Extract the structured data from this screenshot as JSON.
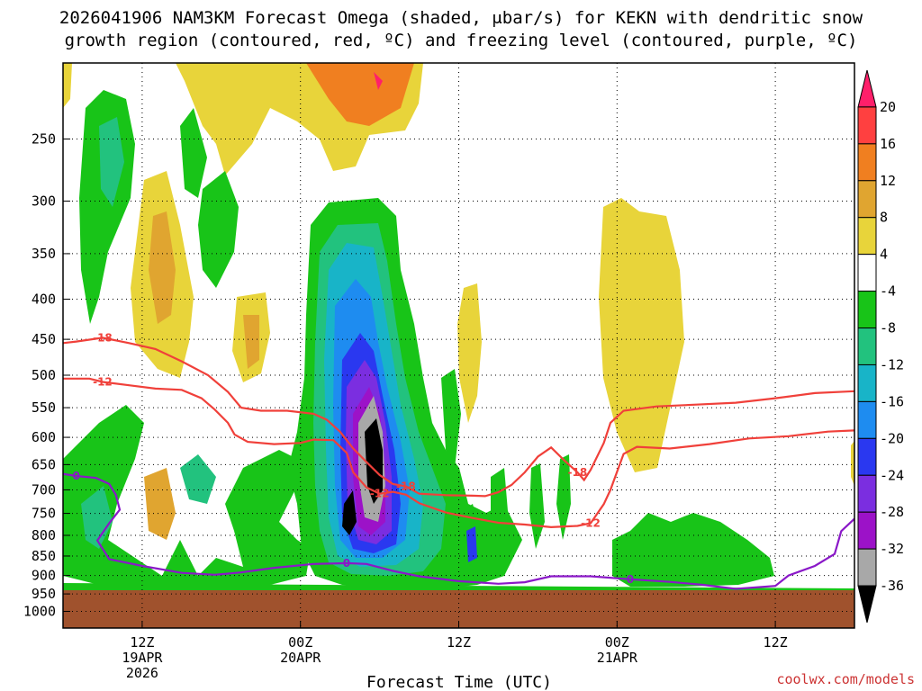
{
  "chart_data": {
    "type": "heatmap",
    "title": {
      "line1": "2026041906 NAM3KM Forecast Omega (shaded, μbar/s) for KEKN with dendritic snow",
      "line2": "growth region (contoured, red, ºC) and freezing level (contoured, purple, ºC)"
    },
    "xlabel": "Forecast Time (UTC)",
    "ylabel": "",
    "x_hours_range": [
      6,
      66
    ],
    "x_ticks": [
      {
        "hour": 12,
        "lines": [
          "12Z",
          "19APR",
          "2026"
        ]
      },
      {
        "hour": 24,
        "lines": [
          "00Z",
          "20APR"
        ]
      },
      {
        "hour": 36,
        "lines": [
          "12Z"
        ]
      },
      {
        "hour": 48,
        "lines": [
          "00Z",
          "21APR"
        ]
      },
      {
        "hour": 60,
        "lines": [
          "12Z"
        ]
      }
    ],
    "y_axis": "pressure (hPa), log scale",
    "ylim": [
      1050,
      200
    ],
    "y_ticks": [
      "250",
      "300",
      "350",
      "400",
      "450",
      "500",
      "550",
      "600",
      "650",
      "700",
      "750",
      "800",
      "850",
      "900",
      "950",
      "1000"
    ],
    "colorbar": {
      "levels": [
        "20",
        "16",
        "12",
        "8",
        "4",
        "-4",
        "-8",
        "-12",
        "-16",
        "-20",
        "-24",
        "-28",
        "-32",
        "-36"
      ],
      "colors": [
        "#ff1f6a",
        "#ff4040",
        "#f07f20",
        "#e0a530",
        "#e8d43a",
        "#ffffff",
        "#18c418",
        "#22c27e",
        "#18b4c8",
        "#1e8cf0",
        "#2a38f0",
        "#7b2ee0",
        "#9c12c8",
        "#a8a8a8",
        "#000000"
      ]
    },
    "series": [
      {
        "name": "dendritic growth -12ºC",
        "color": "#f0403a",
        "label": "-12",
        "points": [
          [
            6,
            505
          ],
          [
            8,
            505
          ],
          [
            9,
            510
          ],
          [
            11,
            515
          ],
          [
            13,
            520
          ],
          [
            15,
            522
          ],
          [
            16.5,
            535
          ],
          [
            17.5,
            553
          ],
          [
            18.5,
            575
          ],
          [
            19,
            595
          ],
          [
            20,
            608
          ],
          [
            22,
            612
          ],
          [
            24,
            610
          ],
          [
            25,
            604
          ],
          [
            26.5,
            605
          ],
          [
            27.5,
            628
          ],
          [
            28,
            665
          ],
          [
            29,
            695
          ],
          [
            30,
            708
          ],
          [
            31,
            704
          ],
          [
            32,
            710
          ],
          [
            33,
            728
          ],
          [
            35,
            748
          ],
          [
            37,
            760
          ],
          [
            39,
            771
          ],
          [
            41,
            775
          ],
          [
            43,
            781
          ],
          [
            45,
            778
          ],
          [
            46,
            772
          ],
          [
            47,
            730
          ],
          [
            47.5,
            700
          ],
          [
            48,
            664
          ],
          [
            48.5,
            630
          ],
          [
            49.5,
            617
          ],
          [
            52,
            620
          ],
          [
            55,
            612
          ],
          [
            58,
            602
          ],
          [
            61,
            598
          ],
          [
            64,
            590
          ],
          [
            66,
            588
          ]
        ]
      },
      {
        "name": "dendritic growth -18ºC",
        "color": "#f0403a",
        "label": "-18",
        "points": [
          [
            6,
            455
          ],
          [
            7,
            453
          ],
          [
            9,
            448
          ],
          [
            11,
            455
          ],
          [
            13,
            463
          ],
          [
            15,
            480
          ],
          [
            17,
            500
          ],
          [
            18.5,
            525
          ],
          [
            19.5,
            550
          ],
          [
            21,
            555
          ],
          [
            23,
            555
          ],
          [
            25,
            560
          ],
          [
            26,
            570
          ],
          [
            27,
            590
          ],
          [
            28,
            620
          ],
          [
            29,
            645
          ],
          [
            30,
            670
          ],
          [
            31,
            688
          ],
          [
            32,
            693
          ],
          [
            33,
            708
          ],
          [
            35,
            711
          ],
          [
            37,
            712
          ],
          [
            38,
            713
          ],
          [
            39,
            705
          ],
          [
            40,
            690
          ],
          [
            41,
            665
          ],
          [
            42,
            635
          ],
          [
            43,
            618
          ],
          [
            44,
            642
          ],
          [
            45,
            665
          ],
          [
            45.5,
            680
          ],
          [
            46,
            660
          ],
          [
            47,
            610
          ],
          [
            47.5,
            575
          ],
          [
            48.5,
            555
          ],
          [
            51,
            548
          ],
          [
            54,
            545
          ],
          [
            57,
            542
          ],
          [
            60,
            535
          ],
          [
            63,
            527
          ],
          [
            66,
            524
          ]
        ]
      },
      {
        "name": "freezing level 0ºC",
        "color": "#8a18c8",
        "label": "0",
        "points": [
          [
            6,
            668
          ],
          [
            7,
            672
          ],
          [
            8.5,
            676
          ],
          [
            9.5,
            688
          ],
          [
            10,
            710
          ],
          [
            10.3,
            742
          ],
          [
            9.5,
            772
          ],
          [
            8.6,
            812
          ],
          [
            9.5,
            858
          ],
          [
            12,
            875
          ],
          [
            15,
            893
          ],
          [
            17.5,
            898
          ],
          [
            19.5,
            892
          ],
          [
            22,
            880
          ],
          [
            25,
            870
          ],
          [
            27.5,
            868
          ],
          [
            29,
            870
          ],
          [
            31,
            888
          ],
          [
            33,
            902
          ],
          [
            36,
            915
          ],
          [
            39,
            922
          ],
          [
            41,
            918
          ],
          [
            43,
            902
          ],
          [
            46,
            902
          ],
          [
            49,
            910
          ],
          [
            52,
            917
          ],
          [
            54.5,
            925
          ],
          [
            57,
            936
          ],
          [
            60,
            928
          ],
          [
            61,
            900
          ],
          [
            63,
            875
          ],
          [
            64.5,
            845
          ],
          [
            65,
            790
          ],
          [
            66,
            762
          ]
        ]
      }
    ],
    "credit": "coolwx.com/models"
  }
}
